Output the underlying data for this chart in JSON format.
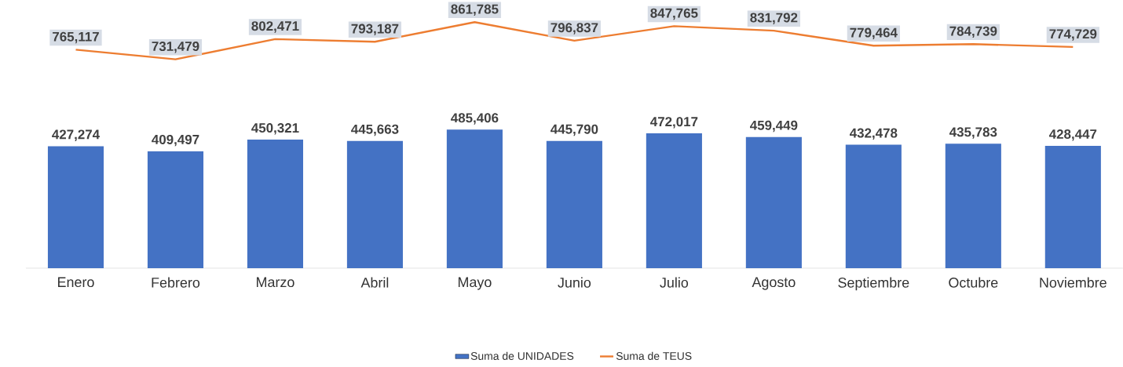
{
  "chart_data": {
    "type": "bar",
    "categories": [
      "Enero",
      "Febrero",
      "Marzo",
      "Abril",
      "Mayo",
      "Junio",
      "Julio",
      "Agosto",
      "Septiembre",
      "Octubre",
      "Noviembre"
    ],
    "series": [
      {
        "name": "Suma de UNIDADES",
        "color": "#4472c4",
        "values": [
          427274,
          409497,
          450321,
          445663,
          485406,
          445790,
          472017,
          459449,
          432478,
          435783,
          428447
        ],
        "value_labels": [
          "427,274",
          "409,497",
          "450,321",
          "445,663",
          "485,406",
          "445,790",
          "472,017",
          "459,449",
          "432,478",
          "435,783",
          "428,447"
        ]
      },
      {
        "name": "Suma de TEUS",
        "type": "line",
        "color": "#ed7d31",
        "values": [
          765117,
          731479,
          802471,
          793187,
          861785,
          796837,
          847765,
          831792,
          779464,
          784739,
          774729
        ],
        "value_labels": [
          "765,117",
          "731,479",
          "802,471",
          "793,187",
          "861,785",
          "796,837",
          "847,765",
          "831,792",
          "779,464",
          "784,739",
          "774,729"
        ]
      }
    ],
    "legend": "bottom",
    "grid": false,
    "marker": "none",
    "line_style": "solid"
  }
}
